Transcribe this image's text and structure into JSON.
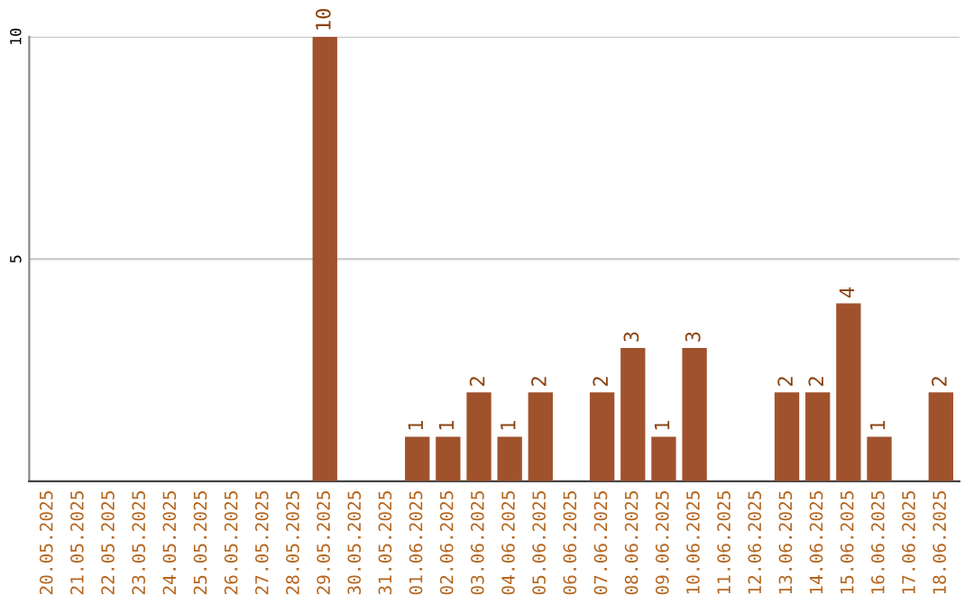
{
  "chart_data": {
    "type": "bar",
    "categories": [
      "20.05.2025",
      "21.05.2025",
      "22.05.2025",
      "23.05.2025",
      "24.05.2025",
      "25.05.2025",
      "26.05.2025",
      "27.05.2025",
      "28.05.2025",
      "29.05.2025",
      "30.05.2025",
      "31.05.2025",
      "01.06.2025",
      "02.06.2025",
      "03.06.2025",
      "04.06.2025",
      "05.06.2025",
      "06.06.2025",
      "07.06.2025",
      "08.06.2025",
      "09.06.2025",
      "10.06.2025",
      "11.06.2025",
      "12.06.2025",
      "13.06.2025",
      "14.06.2025",
      "15.06.2025",
      "16.06.2025",
      "17.06.2025",
      "18.06.2025"
    ],
    "values": [
      0,
      0,
      0,
      0,
      0,
      0,
      0,
      0,
      0,
      10,
      0,
      0,
      1,
      1,
      2,
      1,
      2,
      0,
      2,
      3,
      1,
      3,
      0,
      0,
      2,
      2,
      4,
      1,
      0,
      2
    ],
    "value_labels": [
      null,
      null,
      null,
      null,
      null,
      null,
      null,
      null,
      null,
      "10",
      null,
      null,
      "1",
      "1",
      "2",
      "1",
      "2",
      null,
      "2",
      "3",
      "1",
      "3",
      null,
      null,
      "2",
      "2",
      "4",
      "1",
      null,
      "2"
    ],
    "color": "#a0522d",
    "ylim": [
      0,
      10
    ],
    "yticks": [
      5,
      10
    ],
    "grid": "y"
  }
}
